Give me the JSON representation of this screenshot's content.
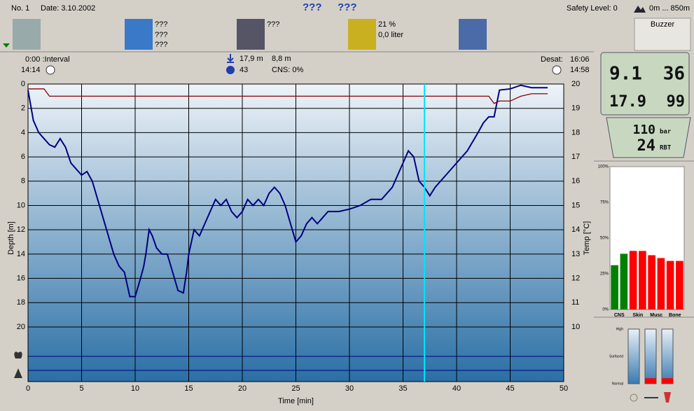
{
  "header": {
    "number": "No. 1",
    "date": "Date: 3.10.2002",
    "name1": "???",
    "name2": "???",
    "safety": "Safety Level: 0",
    "altitude": "0m ... 850m"
  },
  "icons": {
    "weather": [
      "???",
      "???",
      "???"
    ],
    "camera": "???",
    "gas": [
      "21 %",
      "0,0 liter"
    ],
    "buzzer": "Buzzer"
  },
  "info": {
    "interval": "0:00 :Interval",
    "start": "14:14",
    "max_depth": "17,9 m",
    "avg_depth": "8,8 m",
    "duration": "43",
    "cns": "CNS: 0%",
    "desat_label": "Desat:",
    "desat": "16:06",
    "end": "14:58"
  },
  "computer": {
    "depth": "9.1",
    "time": "36",
    "max": "17.9",
    "nostop": "99",
    "pressure": "110",
    "pressure_unit": "bar",
    "rbt": "24",
    "rbt_label": "RBT"
  },
  "chart_data": [
    {
      "type": "line",
      "x_label": "Time [min]",
      "y_label": "Depth [m]",
      "y2_label": "Temp [°C]",
      "xlim": [
        0,
        50
      ],
      "xticks": [
        0,
        5,
        10,
        15,
        20,
        25,
        30,
        35,
        40,
        45,
        50
      ],
      "ylim": [
        0,
        24.5
      ],
      "yticks": [
        0,
        2,
        4,
        6,
        8,
        10,
        12,
        14,
        16,
        18,
        20
      ],
      "y_inverted": true,
      "y2lim": [
        7.75,
        20
      ],
      "y2ticks": [
        10,
        11,
        12,
        13,
        14,
        15,
        16,
        17,
        18,
        19,
        20
      ],
      "grid": true,
      "cursor_x": 37,
      "cursor_color": "#00e5ff",
      "series": [
        {
          "color": "#000080",
          "x": [
            0,
            0.3,
            0.5,
            1,
            1.5,
            2,
            2.5,
            3,
            3.5,
            4,
            4.5,
            5,
            5.5,
            6,
            6.5,
            7,
            7.5,
            8,
            8.5,
            9,
            9.5,
            10,
            10.5,
            10.8,
            11,
            11.3,
            11.6,
            12,
            12.5,
            13,
            13.5,
            14,
            14.5,
            14.8,
            15,
            15.5,
            16,
            16.5,
            17,
            17.5,
            18,
            18.5,
            19,
            19.5,
            20,
            20.5,
            21,
            21.5,
            22,
            22.5,
            23,
            23.5,
            24,
            24.5,
            25,
            25.5,
            26,
            26.5,
            27,
            27.5,
            28,
            28.5,
            29,
            30,
            31,
            32,
            33,
            34,
            35,
            35.5,
            36,
            36.5,
            37,
            37.5,
            38,
            39,
            40,
            41,
            42,
            42.5,
            43,
            43.5,
            44,
            45,
            46,
            47,
            48,
            48.5
          ],
          "values": [
            0.5,
            2,
            3,
            4,
            4.5,
            5,
            5.2,
            4.5,
            5.2,
            6.5,
            7,
            7.5,
            7.2,
            8,
            9.5,
            11,
            12.5,
            14,
            15,
            15.5,
            17.5,
            17.5,
            16,
            15,
            14,
            12,
            12.5,
            13.5,
            14,
            14,
            15.5,
            17,
            17.2,
            15.5,
            14,
            12,
            12.5,
            11.5,
            10.5,
            9.5,
            10,
            9.5,
            10.5,
            11,
            10.5,
            9.5,
            10,
            9.5,
            10,
            9,
            8.5,
            9,
            10,
            11.5,
            13,
            12.5,
            11.5,
            11,
            11.5,
            11,
            10.5,
            10.5,
            10.5,
            10.3,
            10,
            9.5,
            9.5,
            8.5,
            6.5,
            5.5,
            6,
            8,
            8.5,
            9.2,
            8.5,
            7.5,
            6.5,
            5.5,
            4,
            3.2,
            2.7,
            2.7,
            0.5,
            0.4,
            0.1,
            0.3,
            0.3,
            0.3
          ]
        },
        {
          "color": "#8b0000",
          "axis": "y2",
          "x": [
            0,
            1.5,
            2,
            43,
            43.5,
            44,
            45,
            46,
            47,
            48.5
          ],
          "values": [
            19.8,
            19.8,
            19.5,
            19.5,
            19.2,
            19.3,
            19.3,
            19.5,
            19.6,
            19.6
          ]
        }
      ]
    },
    {
      "type": "bar",
      "categories": [
        "CNS",
        null,
        "Skin",
        null,
        "Musc",
        null,
        "Bone",
        null
      ],
      "values": [
        31,
        39,
        41,
        41,
        38,
        36,
        34,
        34
      ],
      "colors": [
        "#008000",
        "#008000",
        "#ff0000",
        "#ff0000",
        "#ff0000",
        "#ff0000",
        "#ff0000",
        "#ff0000"
      ],
      "ylim": [
        0,
        100
      ],
      "yticks": [
        {
          "value": 0,
          "label": "0%"
        },
        {
          "value": 25,
          "label": "25%"
        },
        {
          "value": 50,
          "label": "50%"
        },
        {
          "value": 75,
          "label": "75%"
        },
        {
          "value": 100,
          "label": "100%"
        }
      ]
    },
    {
      "type": "bar",
      "values": [
        0,
        10,
        10
      ],
      "color": "#ff0000",
      "ylim": [
        0,
        100
      ],
      "yticks": [
        {
          "value": 100,
          "label": "High"
        },
        {
          "value": 50,
          "label": "Surfaced"
        },
        {
          "value": 0,
          "label": "Normal"
        }
      ]
    }
  ]
}
